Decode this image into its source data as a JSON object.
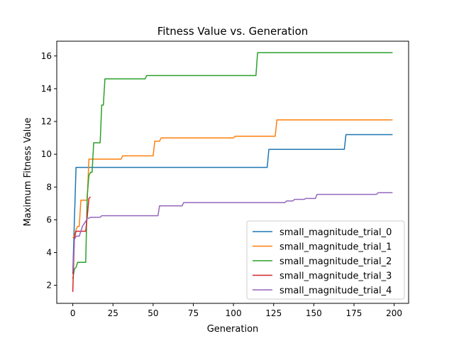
{
  "chart_data": {
    "type": "line",
    "title": "Fitness Value vs. Generation",
    "xlabel": "Generation",
    "ylabel": "Maximum Fitness Value",
    "xlim": [
      -10,
      209
    ],
    "ylim": [
      0.9,
      16.9
    ],
    "xticks": [
      0,
      25,
      50,
      75,
      100,
      125,
      150,
      175,
      200
    ],
    "yticks": [
      2,
      4,
      6,
      8,
      10,
      12,
      14,
      16
    ],
    "grid": false,
    "legend_position": "lower-right",
    "series": [
      {
        "name": "small_magnitude_trial_0",
        "color": "#1f77b4",
        "points": [
          [
            0,
            2.7
          ],
          [
            1,
            6.0
          ],
          [
            2,
            9.2
          ],
          [
            121,
            9.2
          ],
          [
            122,
            10.3
          ],
          [
            169,
            10.3
          ],
          [
            170,
            11.2
          ],
          [
            199,
            11.2
          ]
        ]
      },
      {
        "name": "small_magnitude_trial_1",
        "color": "#ff7f0e",
        "points": [
          [
            0,
            4.9
          ],
          [
            1,
            5.0
          ],
          [
            2,
            5.4
          ],
          [
            3,
            5.6
          ],
          [
            4,
            5.6
          ],
          [
            5,
            7.2
          ],
          [
            9,
            7.2
          ],
          [
            10,
            9.7
          ],
          [
            30,
            9.7
          ],
          [
            31,
            9.9
          ],
          [
            50,
            9.9
          ],
          [
            51,
            10.8
          ],
          [
            54,
            10.8
          ],
          [
            55,
            11.0
          ],
          [
            100,
            11.0
          ],
          [
            101,
            11.1
          ],
          [
            126,
            11.1
          ],
          [
            127,
            12.1
          ],
          [
            199,
            12.1
          ]
        ]
      },
      {
        "name": "small_magnitude_trial_2",
        "color": "#2ca02c",
        "points": [
          [
            0,
            2.4
          ],
          [
            1,
            3.0
          ],
          [
            2,
            3.1
          ],
          [
            3,
            3.4
          ],
          [
            8,
            3.4
          ],
          [
            9,
            7.5
          ],
          [
            10,
            8.7
          ],
          [
            11,
            8.9
          ],
          [
            12,
            8.9
          ],
          [
            13,
            10.7
          ],
          [
            17,
            10.7
          ],
          [
            18,
            13.0
          ],
          [
            19,
            13.0
          ],
          [
            20,
            14.6
          ],
          [
            45,
            14.6
          ],
          [
            46,
            14.8
          ],
          [
            114,
            14.8
          ],
          [
            115,
            16.2
          ],
          [
            199,
            16.2
          ]
        ]
      },
      {
        "name": "small_magnitude_trial_3",
        "color": "#d62728",
        "points": [
          [
            0,
            1.6
          ],
          [
            1,
            4.9
          ],
          [
            2,
            5.3
          ],
          [
            8,
            5.3
          ],
          [
            9,
            6.2
          ],
          [
            10,
            7.3
          ],
          [
            11,
            7.4
          ]
        ]
      },
      {
        "name": "small_magnitude_trial_4",
        "color": "#9467bd",
        "points": [
          [
            0,
            2.8
          ],
          [
            1,
            4.8
          ],
          [
            2,
            5.0
          ],
          [
            4,
            5.0
          ],
          [
            5,
            5.3
          ],
          [
            6,
            5.6
          ],
          [
            8,
            5.9
          ],
          [
            9,
            6.1
          ],
          [
            10,
            6.1
          ],
          [
            11,
            6.15
          ],
          [
            17,
            6.15
          ],
          [
            18,
            6.25
          ],
          [
            53,
            6.25
          ],
          [
            54,
            6.85
          ],
          [
            68,
            6.85
          ],
          [
            69,
            7.05
          ],
          [
            132,
            7.05
          ],
          [
            133,
            7.15
          ],
          [
            137,
            7.15
          ],
          [
            138,
            7.25
          ],
          [
            144,
            7.25
          ],
          [
            145,
            7.3
          ],
          [
            151,
            7.3
          ],
          [
            152,
            7.55
          ],
          [
            189,
            7.55
          ],
          [
            190,
            7.65
          ],
          [
            199,
            7.65
          ]
        ]
      }
    ]
  }
}
